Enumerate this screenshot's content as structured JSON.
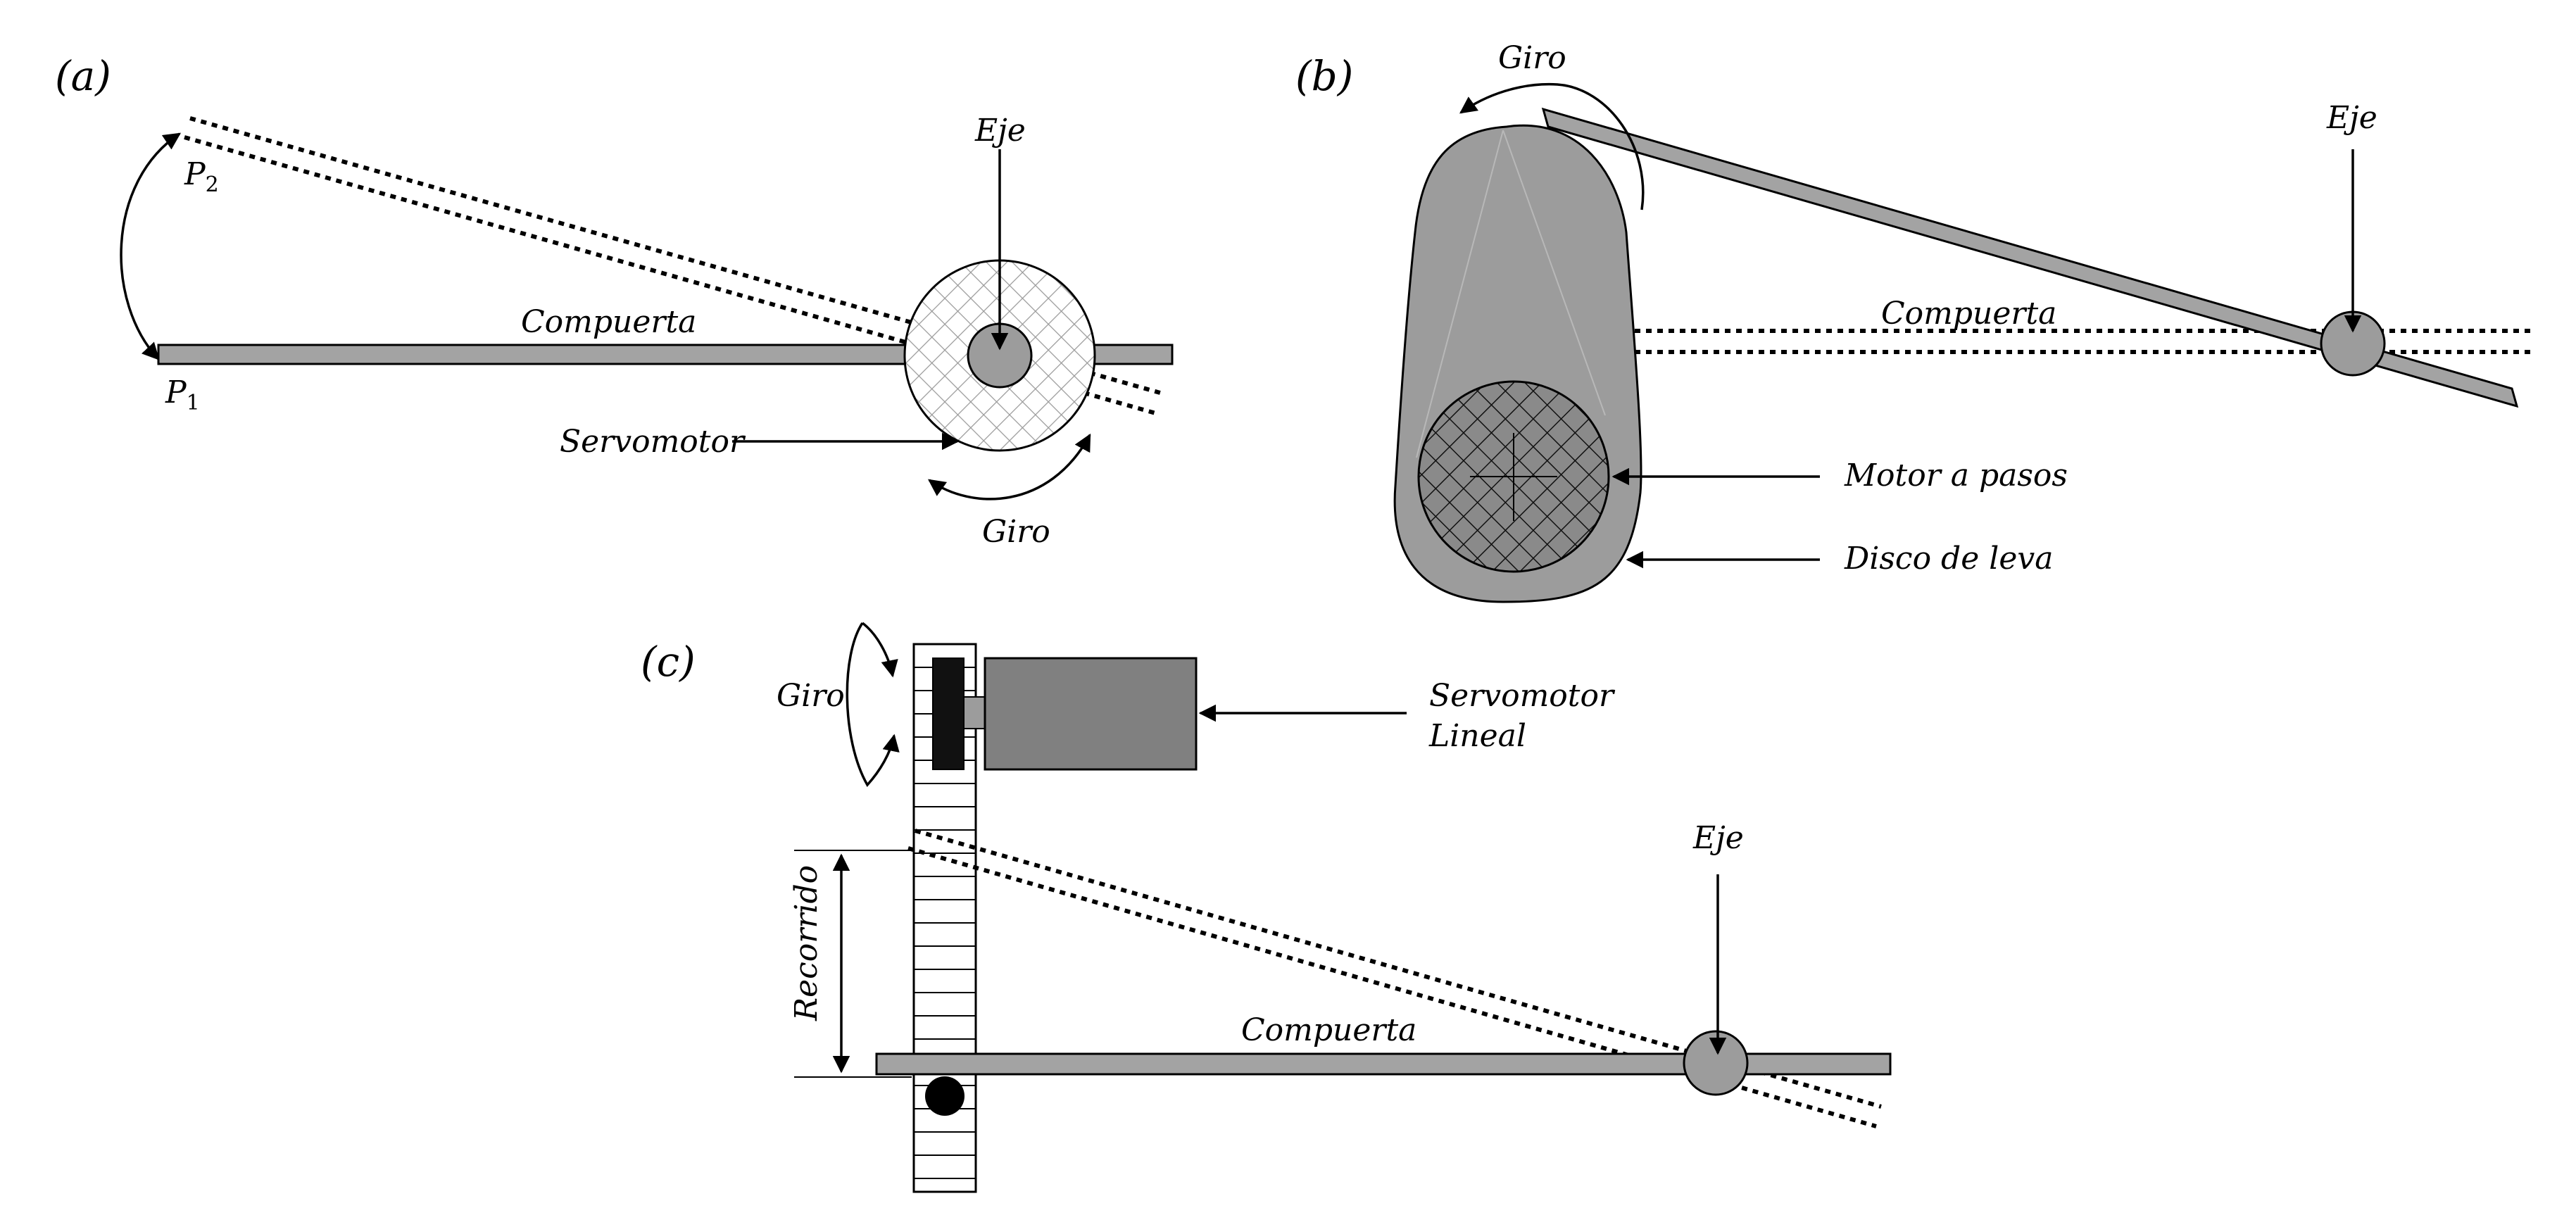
{
  "panels": {
    "a": {
      "label": "(a)",
      "p2": "P",
      "p2_sub": "2",
      "p1": "P",
      "p1_sub": "1",
      "eje": "Eje",
      "compuerta": "Compuerta",
      "servomotor": "Servomotor",
      "giro": "Giro"
    },
    "b": {
      "label": "(b)",
      "giro": "Giro",
      "eje": "Eje",
      "compuerta": "Compuerta",
      "motor": "Motor a pasos",
      "disco": "Disco de leva"
    },
    "c": {
      "label": "(c)",
      "giro": "Giro",
      "servomotor_line1": "Servomotor",
      "servomotor_line2": "Lineal",
      "eje": "Eje",
      "recorrido": "Recorrido",
      "compuerta": "Compuerta"
    }
  }
}
